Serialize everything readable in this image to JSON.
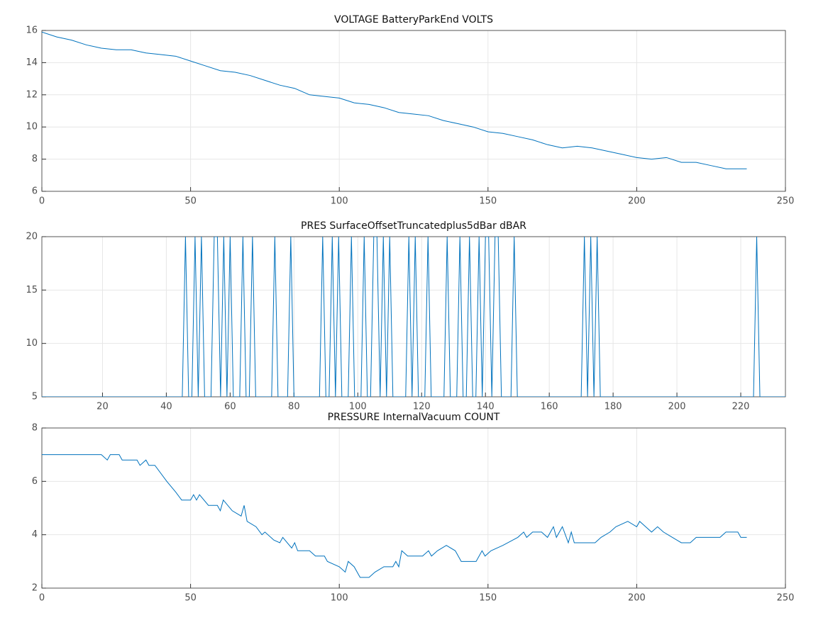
{
  "chart_data": [
    {
      "type": "line",
      "title": "VOLTAGE BatteryParkEnd VOLTS",
      "x": [
        0,
        5,
        10,
        15,
        20,
        25,
        30,
        35,
        40,
        45,
        50,
        55,
        60,
        65,
        70,
        75,
        80,
        85,
        90,
        95,
        100,
        105,
        110,
        115,
        120,
        125,
        130,
        135,
        140,
        145,
        150,
        155,
        160,
        165,
        170,
        175,
        180,
        185,
        190,
        195,
        200,
        205,
        210,
        215,
        220,
        225,
        230,
        235,
        237
      ],
      "values": [
        15.9,
        15.6,
        15.4,
        15.1,
        14.9,
        14.8,
        14.8,
        14.6,
        14.5,
        14.4,
        14.1,
        13.8,
        13.5,
        13.4,
        13.2,
        12.9,
        12.6,
        12.4,
        12.0,
        11.9,
        11.8,
        11.5,
        11.4,
        11.2,
        10.9,
        10.8,
        10.7,
        10.4,
        10.2,
        10.0,
        9.7,
        9.6,
        9.4,
        9.2,
        8.9,
        8.7,
        8.8,
        8.7,
        8.5,
        8.3,
        8.1,
        8.0,
        8.1,
        7.8,
        7.8,
        7.6,
        7.4,
        7.4,
        7.4
      ],
      "color": "#0072bd",
      "xlim": [
        0,
        250
      ],
      "xticks": [
        0,
        50,
        100,
        150,
        200,
        250
      ],
      "ylim": [
        6,
        16
      ],
      "yticks": [
        6,
        8,
        10,
        12,
        14,
        16
      ],
      "grid": true
    },
    {
      "type": "line",
      "title": "PRES SurfaceOffsetTruncatedplus5dBar dBAR",
      "x": [
        1,
        45,
        46,
        47,
        48,
        49,
        50,
        51,
        52,
        54,
        55,
        56,
        57,
        58,
        59,
        60,
        61,
        63,
        64,
        65,
        66,
        67,
        68,
        73,
        74,
        75,
        78,
        79,
        80,
        88,
        89,
        90,
        91,
        92,
        93,
        94,
        95,
        97,
        98,
        99,
        101,
        102,
        103,
        104,
        105,
        106,
        107,
        108,
        109,
        110,
        111,
        115,
        116,
        117,
        118,
        119,
        121,
        122,
        123,
        127,
        128,
        129,
        131,
        132,
        133,
        134,
        135,
        136,
        137,
        138,
        139,
        140,
        141,
        142,
        143,
        144,
        145,
        148,
        149,
        150,
        170,
        171,
        172,
        173,
        174,
        175,
        176,
        224,
        225,
        226,
        234
      ],
      "values": [
        5,
        5,
        20,
        5,
        5,
        20,
        5,
        20,
        5,
        5,
        20,
        20,
        5,
        20,
        5,
        20,
        5,
        5,
        20,
        5,
        5,
        20,
        5,
        5,
        20,
        5,
        5,
        20,
        5,
        5,
        20,
        5,
        5,
        20,
        5,
        20,
        5,
        5,
        20,
        5,
        5,
        20,
        5,
        5,
        20,
        20,
        5,
        20,
        5,
        20,
        5,
        5,
        20,
        5,
        20,
        5,
        5,
        20,
        5,
        5,
        20,
        5,
        5,
        20,
        5,
        5,
        20,
        5,
        5,
        20,
        5,
        20,
        20,
        5,
        20,
        20,
        5,
        5,
        20,
        5,
        5,
        20,
        5,
        20,
        5,
        20,
        5,
        5,
        20,
        5,
        5
      ],
      "color": "#0072bd",
      "xlim": [
        1,
        234
      ],
      "xticks": [
        20,
        40,
        60,
        80,
        100,
        120,
        140,
        160,
        180,
        200,
        220
      ],
      "ylim": [
        5,
        20
      ],
      "yticks": [
        5,
        10,
        15,
        20
      ],
      "grid": true
    },
    {
      "type": "line",
      "title": "PRESSURE InternalVacuum COUNT",
      "x": [
        0,
        10,
        20,
        22,
        23,
        26,
        27,
        32,
        33,
        35,
        36,
        38,
        42,
        45,
        47,
        50,
        51,
        52,
        53,
        56,
        59,
        60,
        61,
        64,
        67,
        68,
        69,
        72,
        74,
        75,
        78,
        80,
        81,
        84,
        85,
        86,
        90,
        92,
        95,
        96,
        100,
        102,
        103,
        105,
        107,
        110,
        112,
        115,
        118,
        119,
        120,
        121,
        123,
        128,
        130,
        131,
        133,
        136,
        139,
        141,
        146,
        148,
        149,
        151,
        155,
        160,
        162,
        163,
        165,
        168,
        170,
        172,
        173,
        175,
        177,
        178,
        179,
        186,
        188,
        191,
        193,
        197,
        200,
        201,
        203,
        205,
        207,
        209,
        212,
        215,
        218,
        220,
        228,
        230,
        234,
        235,
        237
      ],
      "values": [
        7,
        7,
        7,
        6.8,
        7,
        7,
        6.8,
        6.8,
        6.6,
        6.8,
        6.6,
        6.6,
        6,
        5.6,
        5.3,
        5.3,
        5.5,
        5.3,
        5.5,
        5.1,
        5.1,
        4.9,
        5.3,
        4.9,
        4.7,
        5.1,
        4.5,
        4.3,
        4,
        4.1,
        3.8,
        3.7,
        3.9,
        3.5,
        3.7,
        3.4,
        3.4,
        3.2,
        3.2,
        3,
        2.8,
        2.6,
        3,
        2.8,
        2.4,
        2.4,
        2.6,
        2.8,
        2.8,
        3,
        2.8,
        3.4,
        3.2,
        3.2,
        3.4,
        3.2,
        3.4,
        3.6,
        3.4,
        3,
        3,
        3.4,
        3.2,
        3.4,
        3.6,
        3.9,
        4.1,
        3.9,
        4.1,
        4.1,
        3.9,
        4.3,
        3.9,
        4.3,
        3.7,
        4.1,
        3.7,
        3.7,
        3.9,
        4.1,
        4.3,
        4.5,
        4.3,
        4.5,
        4.3,
        4.1,
        4.3,
        4.1,
        3.9,
        3.7,
        3.7,
        3.9,
        3.9,
        4.1,
        4.1,
        3.9,
        3.9
      ],
      "color": "#0072bd",
      "xlim": [
        0,
        250
      ],
      "xticks": [
        0,
        50,
        100,
        150,
        200,
        250
      ],
      "ylim": [
        2,
        8
      ],
      "yticks": [
        2,
        4,
        6,
        8
      ],
      "grid": true
    }
  ]
}
